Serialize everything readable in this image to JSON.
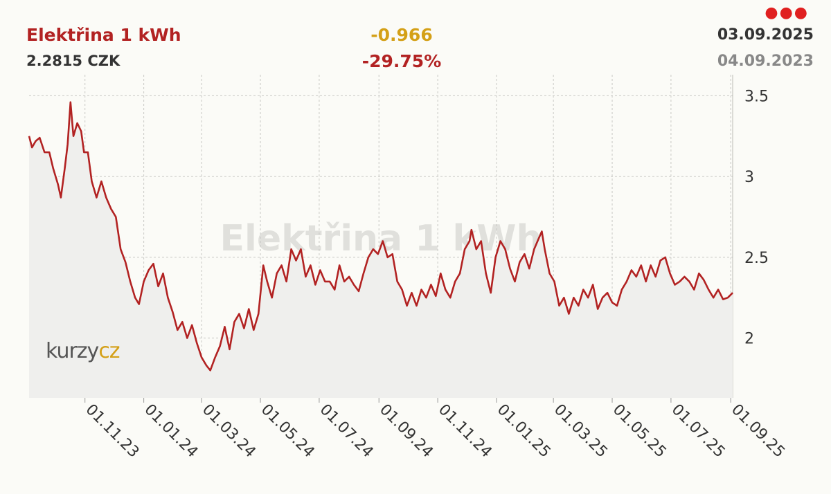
{
  "header": {
    "title": "Elektřina 1 kWh",
    "price": "2.2815 CZK",
    "change": "-0.966",
    "change_pct": "-29.75%",
    "date_end": "03.09.2025",
    "date_start": "04.09.2023",
    "menu_icon": "more-dots-icon"
  },
  "watermark": "Elektřina 1 kWh",
  "logo": {
    "text_a": "kurzy",
    "text_b": "cz"
  },
  "colors": {
    "title": "#b22222",
    "line": "#b22222",
    "change": "#d4a017",
    "change_pct": "#b22222",
    "menu": "#e02020",
    "logo_a": "#555555",
    "logo_b": "#d4a017"
  },
  "chart_data": {
    "type": "line",
    "title": "Elektřina 1 kWh",
    "xlabel": "",
    "ylabel": "",
    "xlim": [
      "2023-09-04",
      "2025-09-03"
    ],
    "ylim": [
      1.63,
      3.63
    ],
    "grid": true,
    "y_ticks": [
      {
        "value": 2,
        "label": "2"
      },
      {
        "value": 2.5,
        "label": "2.5"
      },
      {
        "value": 3,
        "label": "3"
      },
      {
        "value": 3.5,
        "label": "3.5"
      }
    ],
    "x_ticks": [
      {
        "date": "2023-11-01",
        "label": "01.11.23"
      },
      {
        "date": "2024-01-01",
        "label": "01.01.24"
      },
      {
        "date": "2024-03-01",
        "label": "01.03.24"
      },
      {
        "date": "2024-05-01",
        "label": "01.05.24"
      },
      {
        "date": "2024-07-01",
        "label": "01.07.24"
      },
      {
        "date": "2024-09-01",
        "label": "01.09.24"
      },
      {
        "date": "2024-11-01",
        "label": "01.11.24"
      },
      {
        "date": "2025-01-01",
        "label": "01.01.25"
      },
      {
        "date": "2025-03-01",
        "label": "01.03.25"
      },
      {
        "date": "2025-05-01",
        "label": "01.05.25"
      },
      {
        "date": "2025-07-01",
        "label": "01.07.25"
      },
      {
        "date": "2025-09-01",
        "label": "01.09.25"
      }
    ],
    "series": [
      {
        "name": "",
        "points": [
          [
            "2023-09-04",
            3.25
          ],
          [
            "2023-09-07",
            3.18
          ],
          [
            "2023-09-11",
            3.22
          ],
          [
            "2023-09-15",
            3.24
          ],
          [
            "2023-09-20",
            3.15
          ],
          [
            "2023-09-25",
            3.15
          ],
          [
            "2023-09-29",
            3.05
          ],
          [
            "2023-10-04",
            2.95
          ],
          [
            "2023-10-07",
            2.87
          ],
          [
            "2023-10-11",
            3.05
          ],
          [
            "2023-10-14",
            3.2
          ],
          [
            "2023-10-17",
            3.46
          ],
          [
            "2023-10-20",
            3.25
          ],
          [
            "2023-10-24",
            3.33
          ],
          [
            "2023-10-28",
            3.28
          ],
          [
            "2023-10-31",
            3.15
          ],
          [
            "2023-11-04",
            3.15
          ],
          [
            "2023-11-08",
            2.97
          ],
          [
            "2023-11-13",
            2.87
          ],
          [
            "2023-11-18",
            2.97
          ],
          [
            "2023-11-23",
            2.87
          ],
          [
            "2023-11-28",
            2.8
          ],
          [
            "2023-12-03",
            2.75
          ],
          [
            "2023-12-08",
            2.55
          ],
          [
            "2023-12-13",
            2.47
          ],
          [
            "2023-12-18",
            2.35
          ],
          [
            "2023-12-23",
            2.25
          ],
          [
            "2023-12-27",
            2.21
          ],
          [
            "2024-01-01",
            2.35
          ],
          [
            "2024-01-06",
            2.42
          ],
          [
            "2024-01-11",
            2.46
          ],
          [
            "2024-01-16",
            2.32
          ],
          [
            "2024-01-21",
            2.4
          ],
          [
            "2024-01-26",
            2.25
          ],
          [
            "2024-01-31",
            2.16
          ],
          [
            "2024-02-05",
            2.05
          ],
          [
            "2024-02-10",
            2.1
          ],
          [
            "2024-02-15",
            2.0
          ],
          [
            "2024-02-20",
            2.08
          ],
          [
            "2024-02-25",
            1.97
          ],
          [
            "2024-03-01",
            1.88
          ],
          [
            "2024-03-06",
            1.83
          ],
          [
            "2024-03-10",
            1.8
          ],
          [
            "2024-03-15",
            1.88
          ],
          [
            "2024-03-20",
            1.95
          ],
          [
            "2024-03-25",
            2.07
          ],
          [
            "2024-03-30",
            1.93
          ],
          [
            "2024-04-04",
            2.1
          ],
          [
            "2024-04-09",
            2.15
          ],
          [
            "2024-04-14",
            2.06
          ],
          [
            "2024-04-19",
            2.18
          ],
          [
            "2024-04-24",
            2.05
          ],
          [
            "2024-04-29",
            2.15
          ],
          [
            "2024-05-04",
            2.45
          ],
          [
            "2024-05-08",
            2.35
          ],
          [
            "2024-05-13",
            2.25
          ],
          [
            "2024-05-18",
            2.4
          ],
          [
            "2024-05-23",
            2.45
          ],
          [
            "2024-05-28",
            2.35
          ],
          [
            "2024-06-02",
            2.55
          ],
          [
            "2024-06-07",
            2.48
          ],
          [
            "2024-06-12",
            2.55
          ],
          [
            "2024-06-17",
            2.38
          ],
          [
            "2024-06-22",
            2.45
          ],
          [
            "2024-06-27",
            2.33
          ],
          [
            "2024-07-02",
            2.42
          ],
          [
            "2024-07-07",
            2.35
          ],
          [
            "2024-07-12",
            2.35
          ],
          [
            "2024-07-17",
            2.3
          ],
          [
            "2024-07-22",
            2.45
          ],
          [
            "2024-07-27",
            2.35
          ],
          [
            "2024-08-01",
            2.38
          ],
          [
            "2024-08-06",
            2.33
          ],
          [
            "2024-08-11",
            2.29
          ],
          [
            "2024-08-16",
            2.4
          ],
          [
            "2024-08-21",
            2.5
          ],
          [
            "2024-08-26",
            2.55
          ],
          [
            "2024-08-31",
            2.52
          ],
          [
            "2024-09-05",
            2.6
          ],
          [
            "2024-09-10",
            2.5
          ],
          [
            "2024-09-15",
            2.52
          ],
          [
            "2024-09-20",
            2.35
          ],
          [
            "2024-09-25",
            2.3
          ],
          [
            "2024-09-30",
            2.2
          ],
          [
            "2024-10-05",
            2.28
          ],
          [
            "2024-10-10",
            2.2
          ],
          [
            "2024-10-15",
            2.3
          ],
          [
            "2024-10-20",
            2.25
          ],
          [
            "2024-10-25",
            2.33
          ],
          [
            "2024-10-30",
            2.26
          ],
          [
            "2024-11-04",
            2.4
          ],
          [
            "2024-11-09",
            2.3
          ],
          [
            "2024-11-14",
            2.25
          ],
          [
            "2024-11-19",
            2.35
          ],
          [
            "2024-11-24",
            2.4
          ],
          [
            "2024-11-29",
            2.55
          ],
          [
            "2024-12-04",
            2.6
          ],
          [
            "2024-12-06",
            2.67
          ],
          [
            "2024-12-11",
            2.55
          ],
          [
            "2024-12-16",
            2.6
          ],
          [
            "2024-12-21",
            2.4
          ],
          [
            "2024-12-26",
            2.28
          ],
          [
            "2024-12-31",
            2.5
          ],
          [
            "2025-01-05",
            2.6
          ],
          [
            "2025-01-10",
            2.55
          ],
          [
            "2025-01-15",
            2.43
          ],
          [
            "2025-01-20",
            2.35
          ],
          [
            "2025-01-25",
            2.47
          ],
          [
            "2025-01-30",
            2.52
          ],
          [
            "2025-02-04",
            2.43
          ],
          [
            "2025-02-09",
            2.55
          ],
          [
            "2025-02-14",
            2.62
          ],
          [
            "2025-02-17",
            2.66
          ],
          [
            "2025-02-20",
            2.55
          ],
          [
            "2025-02-25",
            2.4
          ],
          [
            "2025-03-02",
            2.35
          ],
          [
            "2025-03-07",
            2.2
          ],
          [
            "2025-03-12",
            2.25
          ],
          [
            "2025-03-17",
            2.15
          ],
          [
            "2025-03-22",
            2.25
          ],
          [
            "2025-03-27",
            2.2
          ],
          [
            "2025-04-01",
            2.3
          ],
          [
            "2025-04-06",
            2.25
          ],
          [
            "2025-04-11",
            2.33
          ],
          [
            "2025-04-16",
            2.18
          ],
          [
            "2025-04-21",
            2.25
          ],
          [
            "2025-04-26",
            2.28
          ],
          [
            "2025-05-01",
            2.22
          ],
          [
            "2025-05-06",
            2.2
          ],
          [
            "2025-05-11",
            2.3
          ],
          [
            "2025-05-16",
            2.35
          ],
          [
            "2025-05-21",
            2.42
          ],
          [
            "2025-05-26",
            2.38
          ],
          [
            "2025-05-31",
            2.45
          ],
          [
            "2025-06-05",
            2.35
          ],
          [
            "2025-06-10",
            2.45
          ],
          [
            "2025-06-15",
            2.38
          ],
          [
            "2025-06-20",
            2.48
          ],
          [
            "2025-06-25",
            2.5
          ],
          [
            "2025-06-30",
            2.4
          ],
          [
            "2025-07-05",
            2.33
          ],
          [
            "2025-07-10",
            2.35
          ],
          [
            "2025-07-15",
            2.38
          ],
          [
            "2025-07-20",
            2.35
          ],
          [
            "2025-07-25",
            2.3
          ],
          [
            "2025-07-30",
            2.4
          ],
          [
            "2025-08-04",
            2.36
          ],
          [
            "2025-08-09",
            2.3
          ],
          [
            "2025-08-14",
            2.25
          ],
          [
            "2025-08-19",
            2.3
          ],
          [
            "2025-08-24",
            2.24
          ],
          [
            "2025-08-29",
            2.25
          ],
          [
            "2025-09-03",
            2.28
          ]
        ]
      }
    ]
  }
}
